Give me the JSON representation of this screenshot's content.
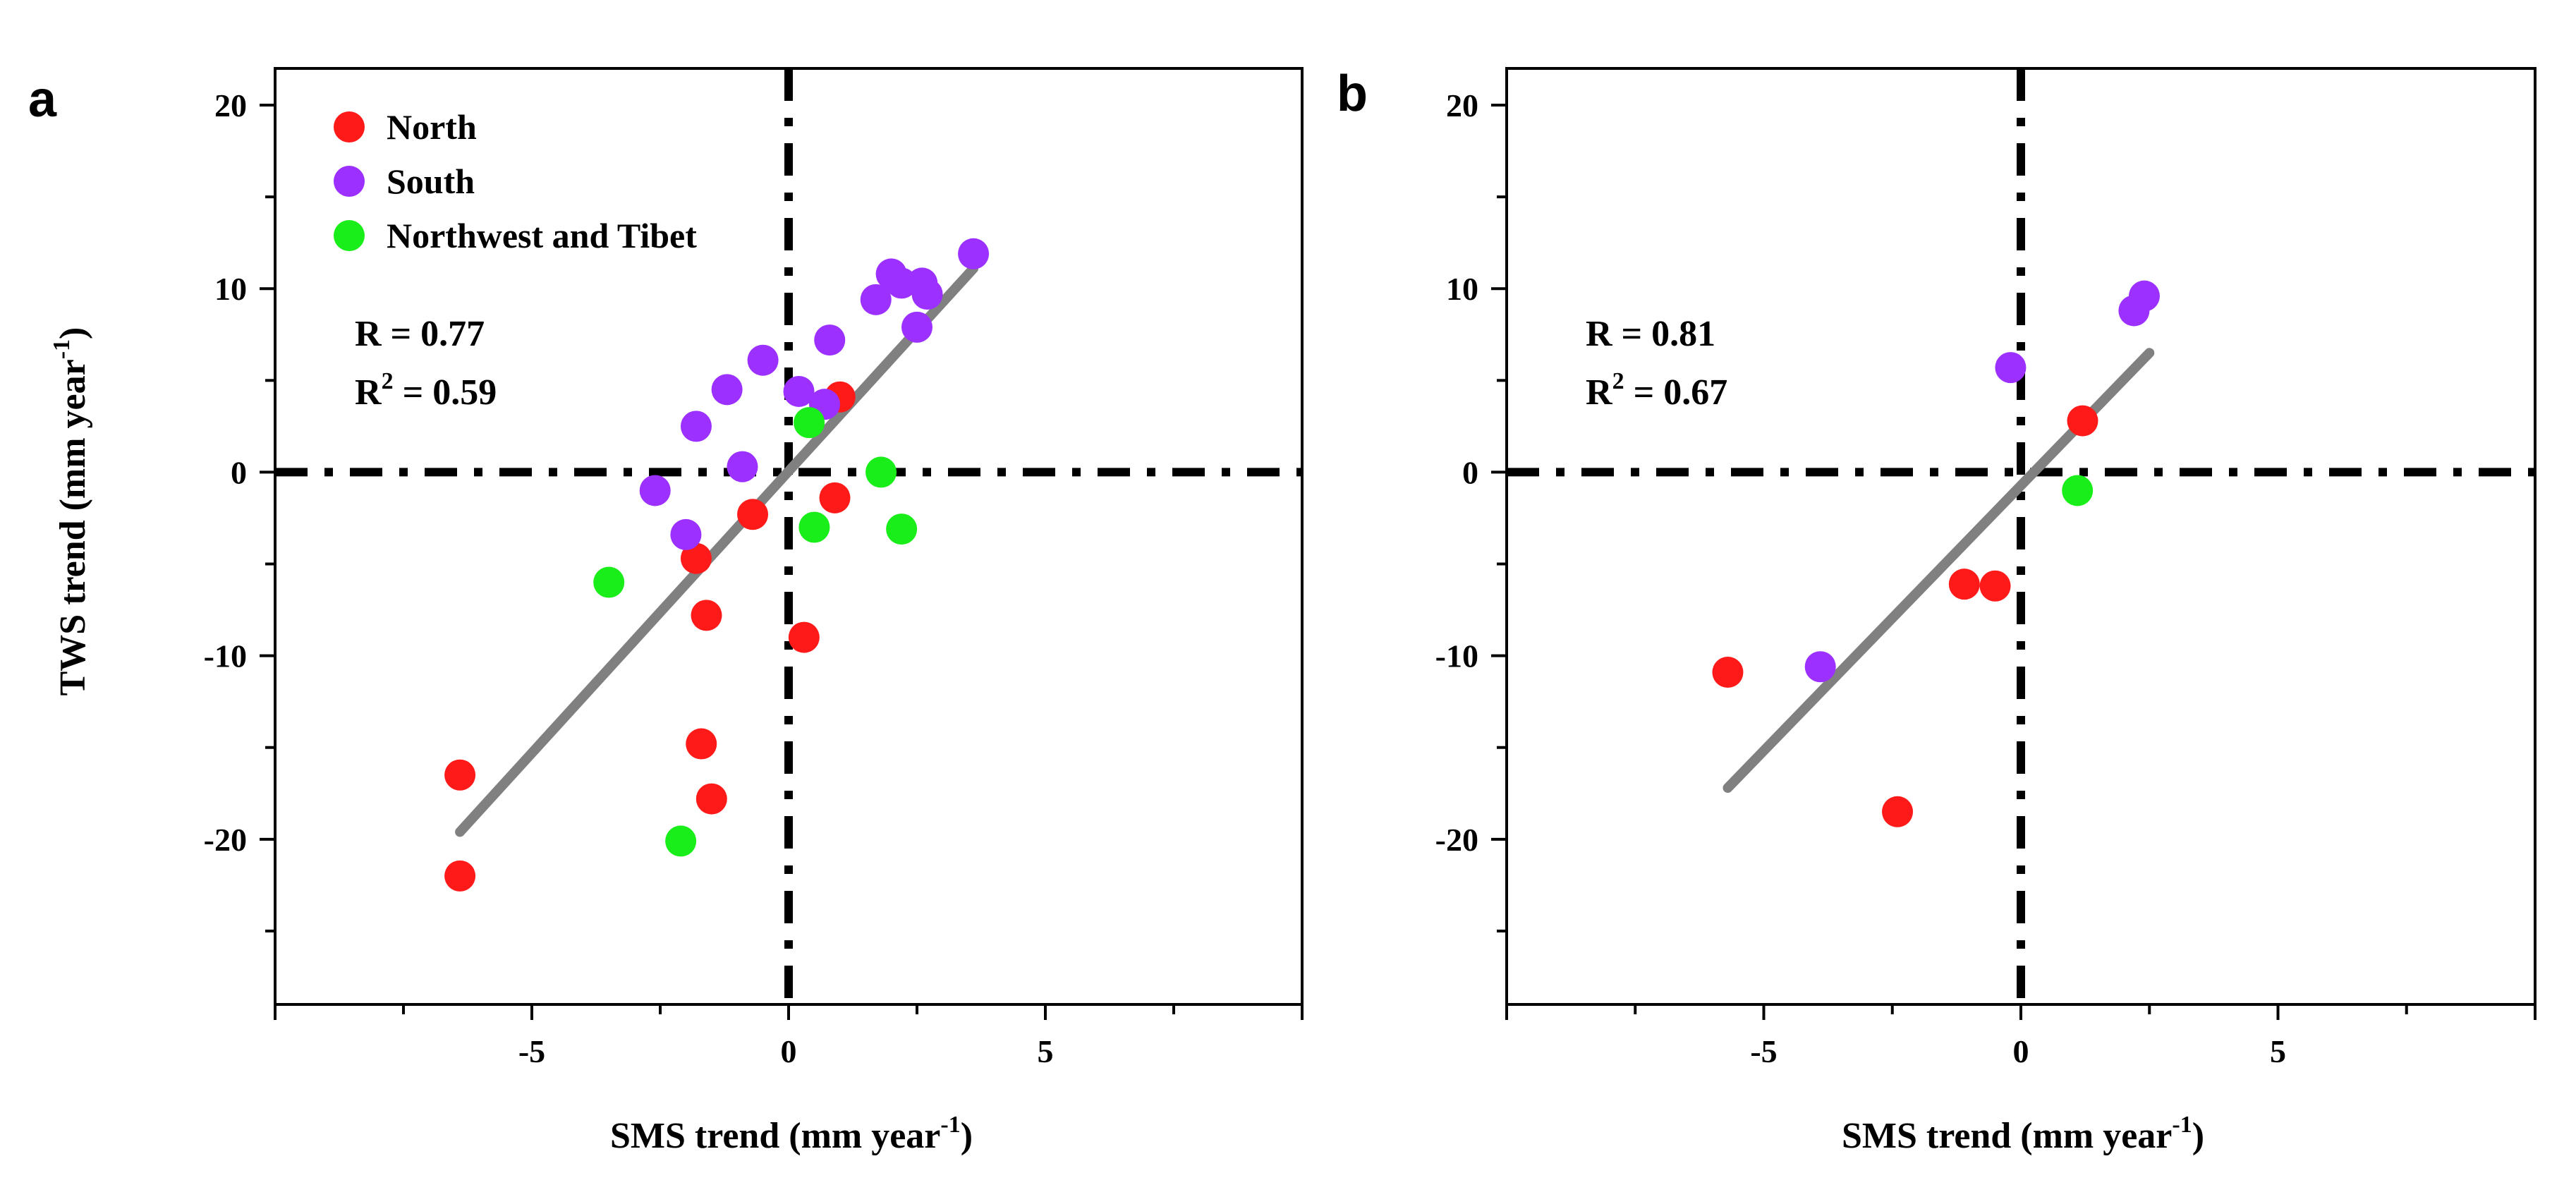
{
  "chart_data": [
    {
      "type": "scatter",
      "panel_label": "a",
      "xlabel": "SMS trend (mm year",
      "xlabel_sup": "-1",
      "xlabel_end": ")",
      "ylabel": "TWS trend (mm year",
      "ylabel_sup": "-1",
      "ylabel_end": ")",
      "xlim": [
        -10,
        10
      ],
      "ylim": [
        -29,
        22
      ],
      "xticks": [
        -5,
        0,
        5
      ],
      "xtick_labels": [
        "-5",
        "0",
        "5"
      ],
      "yticks": [
        20,
        10,
        0,
        -10,
        -20
      ],
      "ytick_labels": [
        "20",
        "10",
        "0",
        "-10",
        "-20"
      ],
      "stat_r": "R = 0.77",
      "stat_r2_prefix": "R",
      "stat_r2_sup": "2",
      "stat_r2_suffix": " = 0.59",
      "fit_line": {
        "x": [
          -6.4,
          3.6
        ],
        "y": [
          -19.6,
          11.1
        ]
      },
      "legend_position": "top-left",
      "series": [
        {
          "name": "North",
          "color": "#ff1a1a",
          "points": [
            [
              -6.4,
              -16.5
            ],
            [
              -6.4,
              -22.0
            ],
            [
              -1.8,
              -4.7
            ],
            [
              -1.6,
              -7.8
            ],
            [
              -1.7,
              -14.8
            ],
            [
              -1.5,
              -17.8
            ],
            [
              -0.7,
              -2.3
            ],
            [
              0.3,
              -9.0
            ],
            [
              0.9,
              -1.4
            ],
            [
              1.0,
              4.1
            ]
          ]
        },
        {
          "name": "South",
          "color": "#9b30ff",
          "points": [
            [
              -2.6,
              -1.0
            ],
            [
              -2.0,
              -3.4
            ],
            [
              -1.8,
              2.5
            ],
            [
              -1.2,
              4.5
            ],
            [
              -0.9,
              0.3
            ],
            [
              -0.5,
              6.1
            ],
            [
              0.2,
              4.4
            ],
            [
              0.7,
              3.7
            ],
            [
              0.8,
              7.2
            ],
            [
              1.7,
              9.4
            ],
            [
              2.0,
              10.8
            ],
            [
              2.2,
              10.3
            ],
            [
              2.6,
              10.3
            ],
            [
              2.7,
              9.7
            ],
            [
              2.5,
              7.9
            ],
            [
              3.6,
              11.9
            ]
          ]
        },
        {
          "name": "Northwest and Tibet",
          "color": "#1aee1a",
          "points": [
            [
              -3.5,
              -6.0
            ],
            [
              -2.1,
              -20.1
            ],
            [
              0.4,
              2.7
            ],
            [
              0.5,
              -3.0
            ],
            [
              1.8,
              0.0
            ],
            [
              2.2,
              -3.1
            ]
          ]
        }
      ]
    },
    {
      "type": "scatter",
      "panel_label": "b",
      "xlabel": "SMS trend (mm year",
      "xlabel_sup": "-1",
      "xlabel_end": ")",
      "xlim": [
        -10,
        10
      ],
      "ylim": [
        -29,
        22
      ],
      "xticks": [
        -5,
        0,
        5
      ],
      "xtick_labels": [
        "-5",
        "0",
        "5"
      ],
      "yticks": [
        20,
        10,
        0,
        -10,
        -20
      ],
      "ytick_labels": [
        "20",
        "10",
        "0",
        "-10",
        "-20"
      ],
      "stat_r": "R = 0.81",
      "stat_r2_prefix": "R",
      "stat_r2_sup": "2",
      "stat_r2_suffix": " = 0.67",
      "fit_line": {
        "x": [
          -5.7,
          2.5
        ],
        "y": [
          -17.2,
          6.5
        ]
      },
      "series": [
        {
          "name": "North",
          "color": "#ff1a1a",
          "points": [
            [
              -5.7,
              -10.9
            ],
            [
              -2.4,
              -18.5
            ],
            [
              -1.1,
              -6.1
            ],
            [
              -0.5,
              -6.2
            ],
            [
              1.2,
              2.8
            ]
          ]
        },
        {
          "name": "South",
          "color": "#9b30ff",
          "points": [
            [
              -3.9,
              -10.6
            ],
            [
              -0.2,
              5.7
            ],
            [
              2.2,
              8.8
            ],
            [
              2.4,
              9.6
            ]
          ]
        },
        {
          "name": "Northwest and Tibet",
          "color": "#1aee1a",
          "points": [
            [
              1.1,
              -1.0
            ]
          ]
        }
      ]
    }
  ]
}
